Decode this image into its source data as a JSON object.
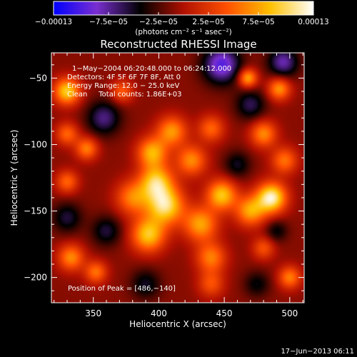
{
  "chart_data": {
    "type": "heatmap",
    "title": "Reconstructed RHESSI Image",
    "xlabel": "Heliocentric X (arcsec)",
    "ylabel": "Heliocentric Y (arcsec)",
    "xlim": [
      318,
      511
    ],
    "ylim": [
      -219,
      -31
    ],
    "x_ticks": [
      350,
      400,
      450,
      500
    ],
    "y_ticks": [
      -50,
      -100,
      -150,
      -200
    ],
    "x_tick_labels": [
      "350",
      "400",
      "450",
      "500"
    ],
    "y_tick_labels": [
      "−50",
      "−100",
      "−150",
      "−200"
    ],
    "colorbar": {
      "range": [
        -0.00013,
        0.00013
      ],
      "tick_values": [
        -0.00013,
        -7.5e-05,
        -2.5e-05,
        2.5e-05,
        7.5e-05,
        0.00013
      ],
      "tick_labels": [
        "−0.00013",
        "−7.5e−05",
        "−2.5e−05",
        "2.5e−05",
        "7.5e−05",
        "0.00013"
      ],
      "unit_label": "(photons cm⁻² s⁻¹ asec⁻²)",
      "colors": [
        "#0000ff",
        "#7a2fd0",
        "#000000",
        "#b01000",
        "#ff5000",
        "#ffc000",
        "#ffffff"
      ]
    },
    "annotations": {
      "time_range": "1−May−2004 06:20:48.000 to 06:24:12.000",
      "detectors": "Detectors: 4F 5F 6F 7F 8F, Att 0",
      "energy_range": "Energy Range: 12.0 − 25.0 keV",
      "clean_counts": "Clean     Total counts: 1.86E+03",
      "peak": "Position of Peak = [486,−140]"
    },
    "blobs": [
      {
        "x": 398,
        "y": -128,
        "amp": 0.0001,
        "s": 9
      },
      {
        "x": 405,
        "y": -146,
        "amp": 0.000115,
        "s": 10
      },
      {
        "x": 395,
        "y": -106,
        "amp": 9e-05,
        "s": 8
      },
      {
        "x": 392,
        "y": -168,
        "amp": 0.0001,
        "s": 9
      },
      {
        "x": 380,
        "y": -140,
        "amp": 7e-05,
        "s": 9
      },
      {
        "x": 425,
        "y": -112,
        "amp": 7.5e-05,
        "s": 8
      },
      {
        "x": 432,
        "y": -160,
        "amp": 8.5e-05,
        "s": 9
      },
      {
        "x": 440,
        "y": -185,
        "amp": 7e-05,
        "s": 8
      },
      {
        "x": 448,
        "y": -138,
        "amp": 0.0001,
        "s": 8
      },
      {
        "x": 470,
        "y": -150,
        "amp": 8.5e-05,
        "s": 8
      },
      {
        "x": 486,
        "y": -140,
        "amp": 0.00013,
        "s": 8
      },
      {
        "x": 496,
        "y": -112,
        "amp": 6.5e-05,
        "s": 7
      },
      {
        "x": 480,
        "y": -92,
        "amp": 7.5e-05,
        "s": 7
      },
      {
        "x": 440,
        "y": -88,
        "amp": 6e-05,
        "s": 7
      },
      {
        "x": 410,
        "y": -90,
        "amp": 8e-05,
        "s": 8
      },
      {
        "x": 468,
        "y": -50,
        "amp": 9e-05,
        "s": 5
      },
      {
        "x": 492,
        "y": -58,
        "amp": 8e-05,
        "s": 6
      },
      {
        "x": 330,
        "y": -60,
        "amp": 0.000105,
        "s": 7
      },
      {
        "x": 345,
        "y": -103,
        "amp": 7e-05,
        "s": 6
      },
      {
        "x": 330,
        "y": -92,
        "amp": 6e-05,
        "s": 6
      },
      {
        "x": 330,
        "y": -128,
        "amp": 6e-05,
        "s": 6
      },
      {
        "x": 333,
        "y": -185,
        "amp": 7.5e-05,
        "s": 7
      },
      {
        "x": 352,
        "y": -196,
        "amp": 6.5e-05,
        "s": 6
      },
      {
        "x": 372,
        "y": -60,
        "amp": 5.5e-05,
        "s": 6
      },
      {
        "x": 440,
        "y": -205,
        "amp": 5e-05,
        "s": 7
      },
      {
        "x": 500,
        "y": -200,
        "amp": 7e-05,
        "s": 6
      },
      {
        "x": 480,
        "y": -178,
        "amp": 5e-05,
        "s": 6
      },
      {
        "x": 360,
        "y": -165,
        "amp": -4.5e-05,
        "s": 8
      },
      {
        "x": 358,
        "y": -80,
        "amp": -6e-05,
        "s": 9
      },
      {
        "x": 448,
        "y": -40,
        "amp": -9e-05,
        "s": 10
      },
      {
        "x": 495,
        "y": -38,
        "amp": -7e-05,
        "s": 8
      },
      {
        "x": 470,
        "y": -70,
        "amp": -5e-05,
        "s": 8
      },
      {
        "x": 460,
        "y": -115,
        "amp": -4e-05,
        "s": 7
      },
      {
        "x": 330,
        "y": -155,
        "amp": -4.5e-05,
        "s": 8
      },
      {
        "x": 390,
        "y": -205,
        "amp": -4e-05,
        "s": 8
      },
      {
        "x": 490,
        "y": -165,
        "amp": -3.5e-05,
        "s": 6
      },
      {
        "x": 475,
        "y": -205,
        "amp": -3.5e-05,
        "s": 7
      }
    ]
  },
  "footer": {
    "timestamp": "17−Jun−2013 06:11"
  }
}
